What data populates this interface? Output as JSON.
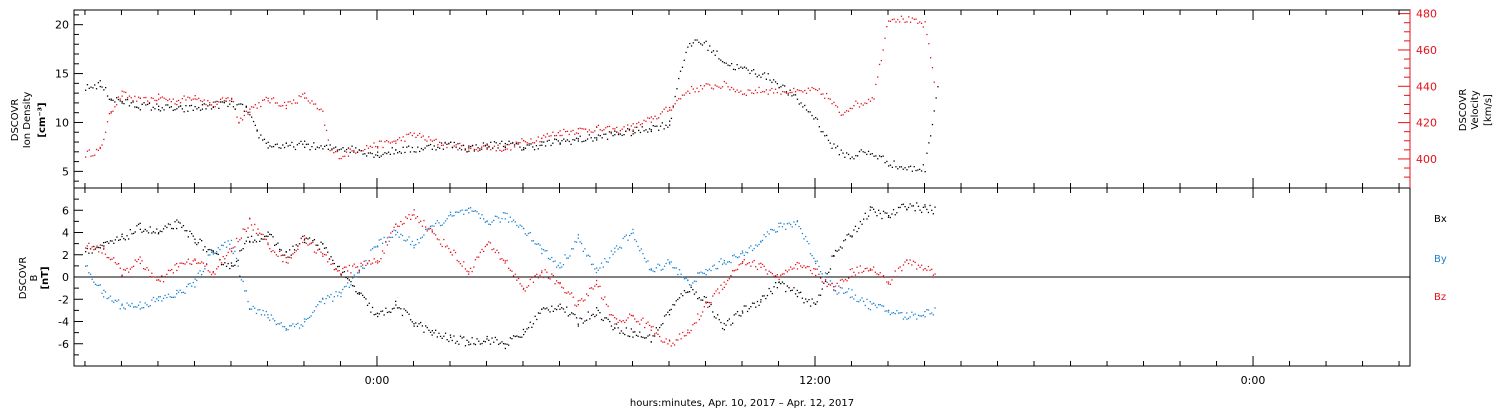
{
  "chart_data": [
    {
      "type": "scatter",
      "panel": "top",
      "ylabel_left": [
        "DSCOVR",
        "Ion Density",
        "[cm⁻³]"
      ],
      "ylabel_right": [
        "DSCOVR",
        "Velocity",
        "[km/s]"
      ],
      "ylim_left": [
        3.3,
        21.5
      ],
      "ylim_right": [
        384,
        482
      ],
      "yticks_left": [
        5,
        10,
        15,
        20
      ],
      "yticks_right": [
        400,
        420,
        440,
        460,
        480
      ],
      "series": [
        {
          "axis": "left",
          "color": "#000000",
          "x": [
            -8.0,
            -7.6,
            -7.3,
            -7.0,
            -6.6,
            -6.0,
            -5.4,
            -4.8,
            -4.2,
            -3.6,
            -3.3,
            -3.0,
            -2.5,
            -2.0,
            -1.5,
            -1.0,
            -0.5,
            0.0,
            0.5,
            1.0,
            1.5,
            2.0,
            2.5,
            3.0,
            3.5,
            4.0,
            4.5,
            5.0,
            5.5,
            6.0,
            6.5,
            7.0,
            7.5,
            8.0,
            8.3,
            8.5,
            8.7,
            9.0,
            9.3,
            9.6,
            10.0,
            10.5,
            10.8,
            11.0,
            11.3,
            11.6,
            12.0,
            12.3,
            12.5,
            12.8,
            13.0,
            13.2,
            13.6,
            14.0,
            14.3,
            14.6,
            15.0,
            15.4
          ],
          "y": [
            13.5,
            14.0,
            12.5,
            12.2,
            11.8,
            11.6,
            11.4,
            11.6,
            12.0,
            11.5,
            9.0,
            7.8,
            7.6,
            7.8,
            7.4,
            7.5,
            7.2,
            6.8,
            7.2,
            7.3,
            7.6,
            7.8,
            7.4,
            7.7,
            7.9,
            7.5,
            7.8,
            8.1,
            8.3,
            8.5,
            8.9,
            9.1,
            9.5,
            9.9,
            15.5,
            17.5,
            18.5,
            18.0,
            17.0,
            16.0,
            15.5,
            15.0,
            14.5,
            14.0,
            13.0,
            12.0,
            10.5,
            8.5,
            7.5,
            6.8,
            6.5,
            7.0,
            6.8,
            6.0,
            5.5,
            5.3,
            5.4,
            15.0
          ]
        },
        {
          "axis": "right",
          "color": "#e3121b",
          "x": [
            -8.0,
            -7.6,
            -7.3,
            -7.0,
            -6.5,
            -6.0,
            -5.5,
            -5.0,
            -4.5,
            -4.0,
            -3.8,
            -3.5,
            -3.0,
            -2.5,
            -2.0,
            -1.5,
            -1.3,
            -1.0,
            -0.5,
            0.0,
            0.5,
            1.0,
            1.5,
            2.0,
            2.5,
            3.0,
            3.5,
            4.0,
            4.5,
            5.0,
            5.5,
            6.0,
            6.5,
            7.0,
            7.5,
            8.0,
            8.5,
            9.0,
            9.5,
            10.0,
            10.5,
            11.0,
            11.5,
            12.0,
            12.3,
            12.7,
            13.0,
            13.3,
            13.6,
            14.0,
            14.5,
            15.0,
            15.3
          ],
          "y": [
            403,
            405,
            427,
            436,
            432,
            434,
            432,
            435,
            430,
            434,
            421,
            428,
            433,
            430,
            435,
            425,
            405,
            402,
            406,
            408,
            410,
            414,
            410,
            408,
            406,
            407,
            406,
            410,
            412,
            415,
            416,
            417,
            416,
            418,
            422,
            428,
            438,
            440,
            441,
            437,
            438,
            438,
            437,
            438,
            435,
            425,
            430,
            431,
            435,
            478,
            477,
            474,
            438
          ]
        }
      ]
    },
    {
      "type": "scatter",
      "panel": "bottom",
      "ylabel": [
        "DSCOVR",
        "B",
        "[nT]"
      ],
      "ylim": [
        -8.0,
        8.0
      ],
      "yticks": [
        -6,
        -4,
        -2,
        0,
        2,
        4,
        6
      ],
      "zero_line": true,
      "legend": [
        "Bx",
        "By",
        "Bz"
      ],
      "series": [
        {
          "name": "Bx",
          "color": "#000000",
          "x": [
            -8.0,
            -7.5,
            -7.0,
            -6.5,
            -6.0,
            -5.5,
            -5.0,
            -4.5,
            -4.0,
            -3.5,
            -3.0,
            -2.5,
            -2.0,
            -1.5,
            -1.0,
            -0.5,
            0.0,
            0.5,
            1.0,
            1.5,
            2.0,
            2.5,
            3.0,
            3.5,
            4.0,
            4.5,
            5.0,
            5.5,
            6.0,
            6.5,
            7.0,
            7.5,
            8.0,
            8.5,
            9.0,
            9.5,
            10.0,
            10.5,
            11.0,
            11.5,
            12.0,
            12.5,
            13.0,
            13.5,
            14.0,
            14.5,
            15.0,
            15.3
          ],
          "y": [
            2.5,
            2.8,
            3.5,
            4.5,
            4.0,
            4.8,
            3.5,
            2.0,
            1.0,
            3.5,
            3.8,
            2.0,
            3.5,
            2.8,
            0.5,
            -1.5,
            -3.5,
            -2.5,
            -4.0,
            -5.0,
            -5.5,
            -5.8,
            -5.5,
            -6.0,
            -5.0,
            -3.0,
            -2.5,
            -4.0,
            -3.0,
            -4.5,
            -5.0,
            -5.5,
            -3.0,
            -1.0,
            -2.0,
            -4.5,
            -3.0,
            -2.0,
            -0.5,
            -1.5,
            -2.5,
            2.0,
            4.0,
            6.0,
            5.5,
            6.5,
            6.2,
            6.0
          ]
        },
        {
          "name": "By",
          "color": "#1a82d0",
          "x": [
            -8.0,
            -7.5,
            -7.0,
            -6.5,
            -6.0,
            -5.5,
            -5.0,
            -4.5,
            -4.0,
            -3.5,
            -3.0,
            -2.5,
            -2.0,
            -1.5,
            -1.0,
            -0.5,
            0.0,
            0.5,
            1.0,
            1.5,
            2.0,
            2.5,
            3.0,
            3.5,
            4.0,
            4.5,
            5.0,
            5.5,
            6.0,
            6.5,
            7.0,
            7.5,
            8.0,
            8.5,
            9.0,
            9.5,
            10.0,
            10.5,
            11.0,
            11.5,
            12.0,
            12.5,
            13.0,
            13.5,
            14.0,
            14.5,
            15.0,
            15.3
          ],
          "y": [
            1.0,
            -1.5,
            -2.5,
            -2.5,
            -2.0,
            -1.5,
            -0.5,
            2.5,
            3.0,
            -2.5,
            -3.5,
            -4.5,
            -4.0,
            -2.0,
            -1.5,
            0.5,
            3.0,
            4.0,
            3.0,
            4.5,
            5.5,
            6.0,
            5.0,
            5.5,
            4.5,
            2.5,
            1.0,
            3.5,
            0.5,
            2.5,
            4.0,
            0.5,
            1.5,
            -0.5,
            0.5,
            1.5,
            2.0,
            3.5,
            4.5,
            5.0,
            1.5,
            -1.0,
            -1.5,
            -2.5,
            -3.0,
            -3.5,
            -3.2,
            -3.0
          ]
        },
        {
          "name": "Bz",
          "color": "#e3121b",
          "x": [
            -8.0,
            -7.5,
            -7.0,
            -6.5,
            -6.0,
            -5.5,
            -5.0,
            -4.5,
            -4.0,
            -3.5,
            -3.0,
            -2.5,
            -2.0,
            -1.5,
            -1.0,
            -0.5,
            0.0,
            0.5,
            1.0,
            1.5,
            2.0,
            2.5,
            3.0,
            3.5,
            4.0,
            4.5,
            5.0,
            5.5,
            6.0,
            6.5,
            7.0,
            7.5,
            8.0,
            8.5,
            9.0,
            9.5,
            10.0,
            10.5,
            11.0,
            11.5,
            12.0,
            12.5,
            13.0,
            13.5,
            14.0,
            14.5,
            15.0,
            15.3
          ],
          "y": [
            3.0,
            2.5,
            0.5,
            1.5,
            -0.5,
            1.0,
            1.5,
            0.5,
            2.5,
            5.0,
            3.0,
            1.5,
            3.5,
            2.0,
            0.5,
            1.0,
            1.5,
            4.5,
            5.8,
            4.0,
            2.5,
            0.5,
            3.0,
            1.5,
            -1.0,
            0.5,
            -0.5,
            -2.5,
            -0.5,
            -4.0,
            -3.5,
            -4.5,
            -6.0,
            -5.0,
            -2.5,
            -0.5,
            1.5,
            1.0,
            0.0,
            1.0,
            0.5,
            -1.0,
            0.5,
            1.0,
            -0.5,
            1.5,
            0.8,
            0.5
          ]
        }
      ]
    }
  ],
  "shared_x": {
    "unit": "hours",
    "xlim": [
      -8.3,
      28.3
    ],
    "major_ticks": [
      {
        "x": 0,
        "label": "0:00"
      },
      {
        "x": 12,
        "label": "12:00"
      },
      {
        "x": 24,
        "label": "0:00"
      }
    ],
    "xlabel": "hours:minutes, Apr. 10, 2017 – Apr. 12, 2017"
  }
}
